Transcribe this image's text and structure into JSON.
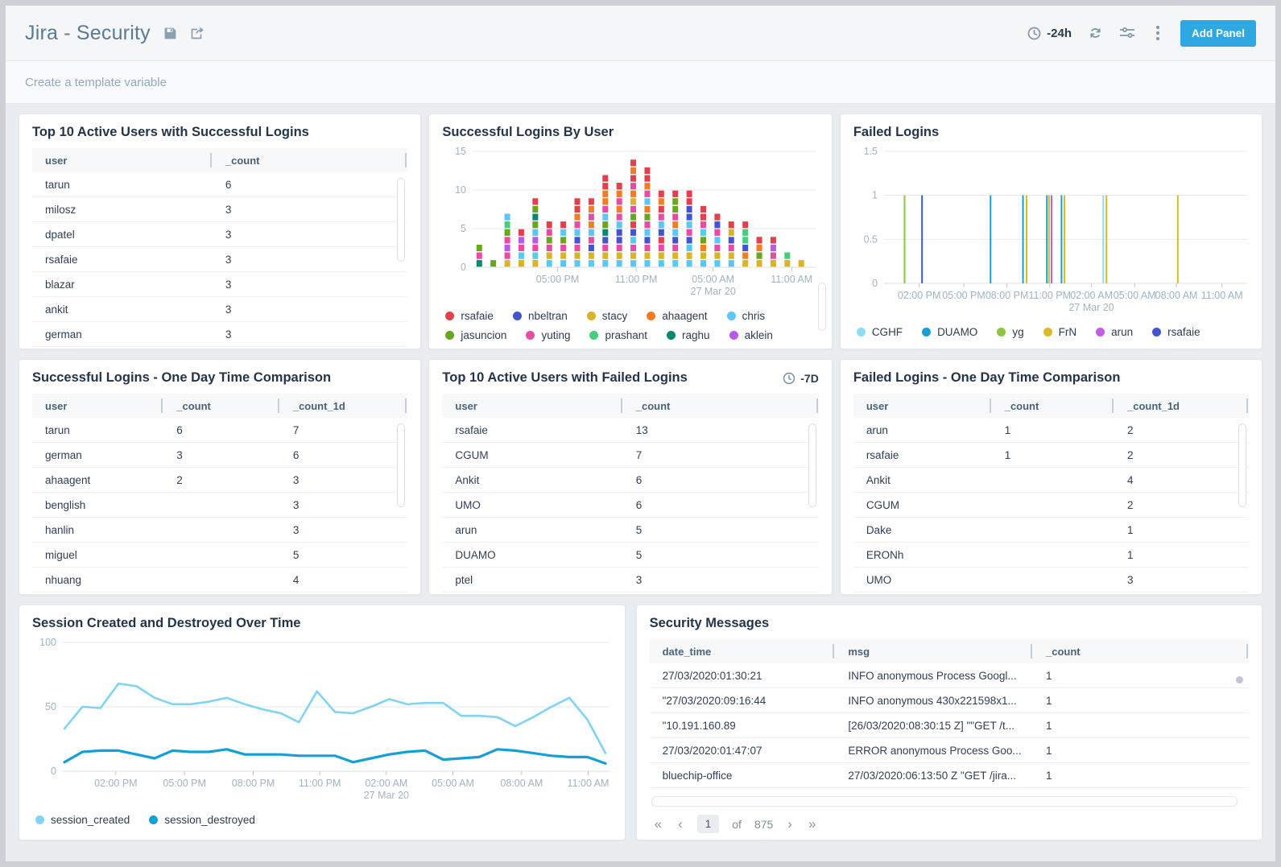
{
  "header": {
    "title": "Jira - Security",
    "time_range": "-24h",
    "add_panel_label": "Add Panel"
  },
  "template_bar": {
    "placeholder": "Create a template variable"
  },
  "panels": {
    "topSuccess": {
      "title": "Top 10 Active Users with Successful Logins",
      "table": {
        "columns": [
          {
            "label": "user",
            "width": "48%"
          },
          {
            "label": "_count",
            "width": "52%"
          }
        ],
        "rows": [
          [
            "tarun",
            "6"
          ],
          [
            "milosz",
            "3"
          ],
          [
            "dpatel",
            "3"
          ],
          [
            "rsafaie",
            "3"
          ],
          [
            "blazar",
            "3"
          ],
          [
            "ankit",
            "3"
          ],
          [
            "german",
            "3"
          ]
        ]
      }
    },
    "successByUser": {
      "title": "Successful Logins By User",
      "chart_data": {
        "type": "bar",
        "stacked": true,
        "title": "Successful Logins By User",
        "ylim": [
          0,
          15
        ],
        "yticks": [
          15,
          10,
          5,
          0
        ],
        "xticks": [
          {
            "f": 0.247,
            "label": "05:00 PM"
          },
          {
            "f": 0.48,
            "label": "11:00 PM"
          },
          {
            "f": 0.708,
            "label": "05:00 AM",
            "sub": "27 Mar 20"
          },
          {
            "f": 0.941,
            "label": "11:00 AM"
          }
        ],
        "series": [
          {
            "name": "rsafaie",
            "color": "#e2404a"
          },
          {
            "name": "nbeltran",
            "color": "#4355ce"
          },
          {
            "name": "stacy",
            "color": "#d9b427"
          },
          {
            "name": "ahaagent",
            "color": "#f47d21"
          },
          {
            "name": "chris",
            "color": "#5ac8f5"
          },
          {
            "name": "jasuncion",
            "color": "#69a51d"
          },
          {
            "name": "yuting",
            "color": "#e84ba4"
          },
          {
            "name": "prashant",
            "color": "#45cf7d"
          },
          {
            "name": "raghu",
            "color": "#04896f"
          },
          {
            "name": "aklein",
            "color": "#bc57eb"
          }
        ],
        "bars": [
          {
            "f": 0.015,
            "segments": [
              "raghu",
              "yuting",
              "jasuncion"
            ]
          },
          {
            "f": 0.0565,
            "segments": [
              "jasuncion"
            ]
          },
          {
            "f": 0.098,
            "segments": [
              "stacy",
              "yuting",
              "aklein",
              "yuting",
              "jasuncion",
              "prashant",
              "chris"
            ]
          },
          {
            "f": 0.1395,
            "segments": [
              "stacy",
              "chris",
              "yuting",
              "aklein",
              "rsafaie"
            ]
          },
          {
            "f": 0.181,
            "segments": [
              "stacy",
              "chris",
              "yuting",
              "aklein",
              "chris",
              "jasuncion",
              "raghu",
              "jasuncion",
              "rsafaie"
            ]
          },
          {
            "f": 0.2225,
            "segments": [
              "chris",
              "stacy",
              "yuting",
              "jasuncion",
              "yuting",
              "rsafaie"
            ]
          },
          {
            "f": 0.264,
            "segments": [
              "chris",
              "stacy",
              "yuting",
              "jasuncion",
              "chris",
              "rsafaie"
            ]
          },
          {
            "f": 0.3055,
            "segments": [
              "chris",
              "stacy",
              "yuting",
              "nbeltran",
              "chris",
              "yuting",
              "ahaagent",
              "rsafaie",
              "rsafaie"
            ]
          },
          {
            "f": 0.347,
            "segments": [
              "chris",
              "stacy",
              "nbeltran",
              "yuting",
              "chris",
              "ahaagent",
              "yuting",
              "ahaagent",
              "rsafaie"
            ]
          },
          {
            "f": 0.3885,
            "segments": [
              "chris",
              "stacy",
              "yuting",
              "nbeltran",
              "raghu",
              "jasuncion",
              "chris",
              "yuting",
              "ahaagent",
              "ahaagent",
              "rsafaie",
              "rsafaie"
            ]
          },
          {
            "f": 0.43,
            "segments": [
              "chris",
              "stacy",
              "yuting",
              "nbeltran",
              "nbeltran",
              "chris",
              "yuting",
              "ahaagent",
              "yuting",
              "ahaagent",
              "rsafaie"
            ]
          },
          {
            "f": 0.4715,
            "segments": [
              "chris",
              "stacy",
              "yuting",
              "chris",
              "nbeltran",
              "rsafaie",
              "jasuncion",
              "yuting",
              "stacy",
              "ahaagent",
              "yuting",
              "rsafaie",
              "ahaagent",
              "rsafaie"
            ]
          },
          {
            "f": 0.513,
            "segments": [
              "chris",
              "stacy",
              "yuting",
              "nbeltran",
              "chris",
              "yuting",
              "jasuncion",
              "ahaagent",
              "chris",
              "yuting",
              "ahaagent",
              "rsafaie",
              "rsafaie"
            ]
          },
          {
            "f": 0.5545,
            "segments": [
              "chris",
              "stacy",
              "yuting",
              "rsafaie",
              "nbeltran",
              "chris",
              "yuting",
              "rsafaie",
              "ahaagent",
              "rsafaie"
            ]
          },
          {
            "f": 0.596,
            "segments": [
              "chris",
              "stacy",
              "yuting",
              "nbeltran",
              "chris",
              "ahaagent",
              "yuting",
              "jasuncion",
              "jasuncion",
              "rsafaie"
            ]
          },
          {
            "f": 0.6375,
            "segments": [
              "chris",
              "stacy",
              "chris",
              "nbeltran",
              "yuting",
              "chris",
              "nbeltran",
              "nbeltran",
              "rsafaie",
              "rsafaie"
            ]
          },
          {
            "f": 0.679,
            "segments": [
              "chris",
              "stacy",
              "ahaagent",
              "jasuncion",
              "chris",
              "yuting",
              "rsafaie",
              "rsafaie"
            ]
          },
          {
            "f": 0.7205,
            "segments": [
              "chris",
              "stacy",
              "yuting",
              "chris",
              "yuting",
              "nbeltran",
              "rsafaie"
            ]
          },
          {
            "f": 0.762,
            "segments": [
              "chris",
              "stacy",
              "yuting",
              "nbeltran",
              "stacy",
              "rsafaie"
            ]
          },
          {
            "f": 0.8035,
            "segments": [
              "stacy",
              "ahaagent",
              "nbeltran",
              "prashant",
              "prashant",
              "rsafaie"
            ]
          },
          {
            "f": 0.845,
            "segments": [
              "stacy",
              "jasuncion",
              "ahaagent",
              "rsafaie"
            ]
          },
          {
            "f": 0.8865,
            "segments": [
              "stacy",
              "yuting",
              "aklein",
              "rsafaie"
            ]
          },
          {
            "f": 0.928,
            "segments": [
              "stacy",
              "prashant"
            ]
          },
          {
            "f": 0.9695,
            "segments": [
              "stacy"
            ]
          }
        ]
      }
    },
    "failedLogins": {
      "title": "Failed Logins",
      "chart_data": {
        "type": "bar",
        "title": "Failed Logins",
        "ylim": [
          0,
          1.5
        ],
        "yticks": [
          1.5,
          1,
          0.5,
          0
        ],
        "xticks": [
          {
            "f": 0.094,
            "label": "02:00 PM"
          },
          {
            "f": 0.219,
            "label": "05:00 PM"
          },
          {
            "f": 0.34,
            "label": "08:00 PM"
          },
          {
            "f": 0.46,
            "label": "11:00 PM"
          },
          {
            "f": 0.577,
            "label": "02:00 AM",
            "sub": "27 Mar 20"
          },
          {
            "f": 0.698,
            "label": "05:00 AM"
          },
          {
            "f": 0.815,
            "label": "08:00 AM"
          },
          {
            "f": 0.943,
            "label": "11:00 AM"
          }
        ],
        "series": [
          {
            "name": "CGHF",
            "color": "#8edcf8"
          },
          {
            "name": "DUAMO",
            "color": "#189fd4"
          },
          {
            "name": "yg",
            "color": "#8cc63f"
          },
          {
            "name": "FrN",
            "color": "#dcb927"
          },
          {
            "name": "arun",
            "color": "#c45ce8"
          },
          {
            "name": "rsafaie",
            "color": "#4355ce"
          }
        ],
        "spikes": [
          {
            "f": 0.053,
            "series": "yg",
            "value": 1
          },
          {
            "f": 0.102,
            "series": "rsafaie",
            "value": 1
          },
          {
            "f": 0.294,
            "series": "DUAMO",
            "value": 1
          },
          {
            "f": 0.385,
            "series": "DUAMO",
            "value": 1
          },
          {
            "f": 0.395,
            "series": "FrN",
            "value": 1
          },
          {
            "f": 0.452,
            "series": "DUAMO",
            "value": 1
          },
          {
            "f": 0.458,
            "series": "FrN",
            "value": 1
          },
          {
            "f": 0.465,
            "series": "arun",
            "value": 1
          },
          {
            "f": 0.493,
            "series": "DUAMO",
            "value": 1
          },
          {
            "f": 0.501,
            "series": "FrN",
            "value": 1
          },
          {
            "f": 0.61,
            "series": "CGHF",
            "value": 1
          },
          {
            "f": 0.619,
            "series": "FrN",
            "value": 1
          },
          {
            "f": 0.819,
            "series": "FrN",
            "value": 1
          }
        ]
      }
    },
    "successComparison": {
      "title": "Successful Logins - One Day Time Comparison",
      "table": {
        "columns": [
          {
            "label": "user",
            "width": "35%"
          },
          {
            "label": "_count",
            "width": "31%"
          },
          {
            "label": "_count_1d",
            "width": "34%"
          }
        ],
        "rows": [
          [
            "tarun",
            "6",
            "7"
          ],
          [
            "german",
            "3",
            "6"
          ],
          [
            "ahaagent",
            "2",
            "3"
          ],
          [
            "benglish",
            "",
            "3"
          ],
          [
            "hanlin",
            "",
            "3"
          ],
          [
            "miguel",
            "",
            "5"
          ],
          [
            "nhuang",
            "",
            "4"
          ]
        ]
      }
    },
    "topFailed": {
      "title": "Top 10 Active Users with Failed Logins",
      "time_badge": "-7D",
      "table": {
        "columns": [
          {
            "label": "user",
            "width": "48%"
          },
          {
            "label": "_count",
            "width": "52%"
          }
        ],
        "rows": [
          [
            "rsafaie",
            "13"
          ],
          [
            "CGUM",
            "7"
          ],
          [
            "Ankit",
            "6"
          ],
          [
            "UMO",
            "6"
          ],
          [
            "arun",
            "5"
          ],
          [
            "DUAMO",
            "5"
          ],
          [
            "ptel",
            "3"
          ]
        ]
      }
    },
    "failedComparison": {
      "title": "Failed Logins - One Day Time Comparison",
      "table": {
        "columns": [
          {
            "label": "user",
            "width": "35%"
          },
          {
            "label": "_count",
            "width": "31%"
          },
          {
            "label": "_count_1d",
            "width": "34%"
          }
        ],
        "rows": [
          [
            "arun",
            "1",
            "2"
          ],
          [
            "rsafaie",
            "1",
            "2"
          ],
          [
            "Ankit",
            "",
            "4"
          ],
          [
            "CGUM",
            "",
            "2"
          ],
          [
            "Dake",
            "",
            "1"
          ],
          [
            "ERONh",
            "",
            "1"
          ],
          [
            "UMO",
            "",
            "3"
          ]
        ]
      }
    },
    "sessions": {
      "title": "Session Created and Destroyed Over Time",
      "chart_data": {
        "type": "line",
        "title": "Session Created and Destroyed Over Time",
        "ylim": [
          0,
          100
        ],
        "yticks": [
          100,
          50,
          0
        ],
        "xticks": [
          {
            "f": 0.095,
            "label": "02:00 PM"
          },
          {
            "f": 0.222,
            "label": "05:00 PM"
          },
          {
            "f": 0.349,
            "label": "08:00 PM"
          },
          {
            "f": 0.472,
            "label": "11:00 PM"
          },
          {
            "f": 0.595,
            "label": "02:00 AM",
            "sub": "27 Mar 20"
          },
          {
            "f": 0.718,
            "label": "05:00 AM"
          },
          {
            "f": 0.845,
            "label": "08:00 AM"
          },
          {
            "f": 0.968,
            "label": "11:00 AM"
          }
        ],
        "series": [
          {
            "name": "session_created",
            "color": "#7fd4f5",
            "values": [
              33,
              50,
              49,
              68,
              66,
              57,
              52,
              52,
              54,
              57,
              52,
              48,
              45,
              38,
              62,
              46,
              45,
              50,
              56,
              52,
              53,
              53,
              43,
              43,
              42,
              35,
              42,
              50,
              57,
              40,
              14
            ]
          },
          {
            "name": "session_destroyed",
            "color": "#13a0d6",
            "values": [
              7,
              15,
              16,
              16,
              13,
              10,
              16,
              15,
              15,
              17,
              13,
              13,
              13,
              12,
              12,
              12,
              7,
              10,
              13,
              15,
              16,
              9,
              10,
              11,
              17,
              16,
              14,
              12,
              11,
              11,
              6
            ]
          }
        ]
      }
    },
    "securityMessages": {
      "title": "Security Messages",
      "table": {
        "columns": [
          {
            "label": "date_time",
            "width": "31%"
          },
          {
            "label": "msg",
            "width": "33%"
          },
          {
            "label": "_count",
            "width": "36%"
          }
        ],
        "rows": [
          [
            "27/03/2020:01:30:21",
            "INFO anonymous Process Googl...",
            "1"
          ],
          [
            "\"27/03/2020:09:16:44",
            "INFO anonymous 430x221598x1...",
            "1"
          ],
          [
            "\"10.191.160.89",
            "[26/03/2020:08:30:15 Z] \"\"GET /t...",
            "1"
          ],
          [
            "27/03/2020:01:47:07",
            "ERROR anonymous Process Goo...",
            "1"
          ],
          [
            "bluechip-office",
            "27/03/2020:06:13:50 Z \"GET /jira...",
            "1"
          ]
        ]
      },
      "pagination": {
        "first": "«",
        "prev": "‹",
        "page": "1",
        "of": "of",
        "total": "875",
        "next": "›",
        "last": "»"
      }
    }
  }
}
